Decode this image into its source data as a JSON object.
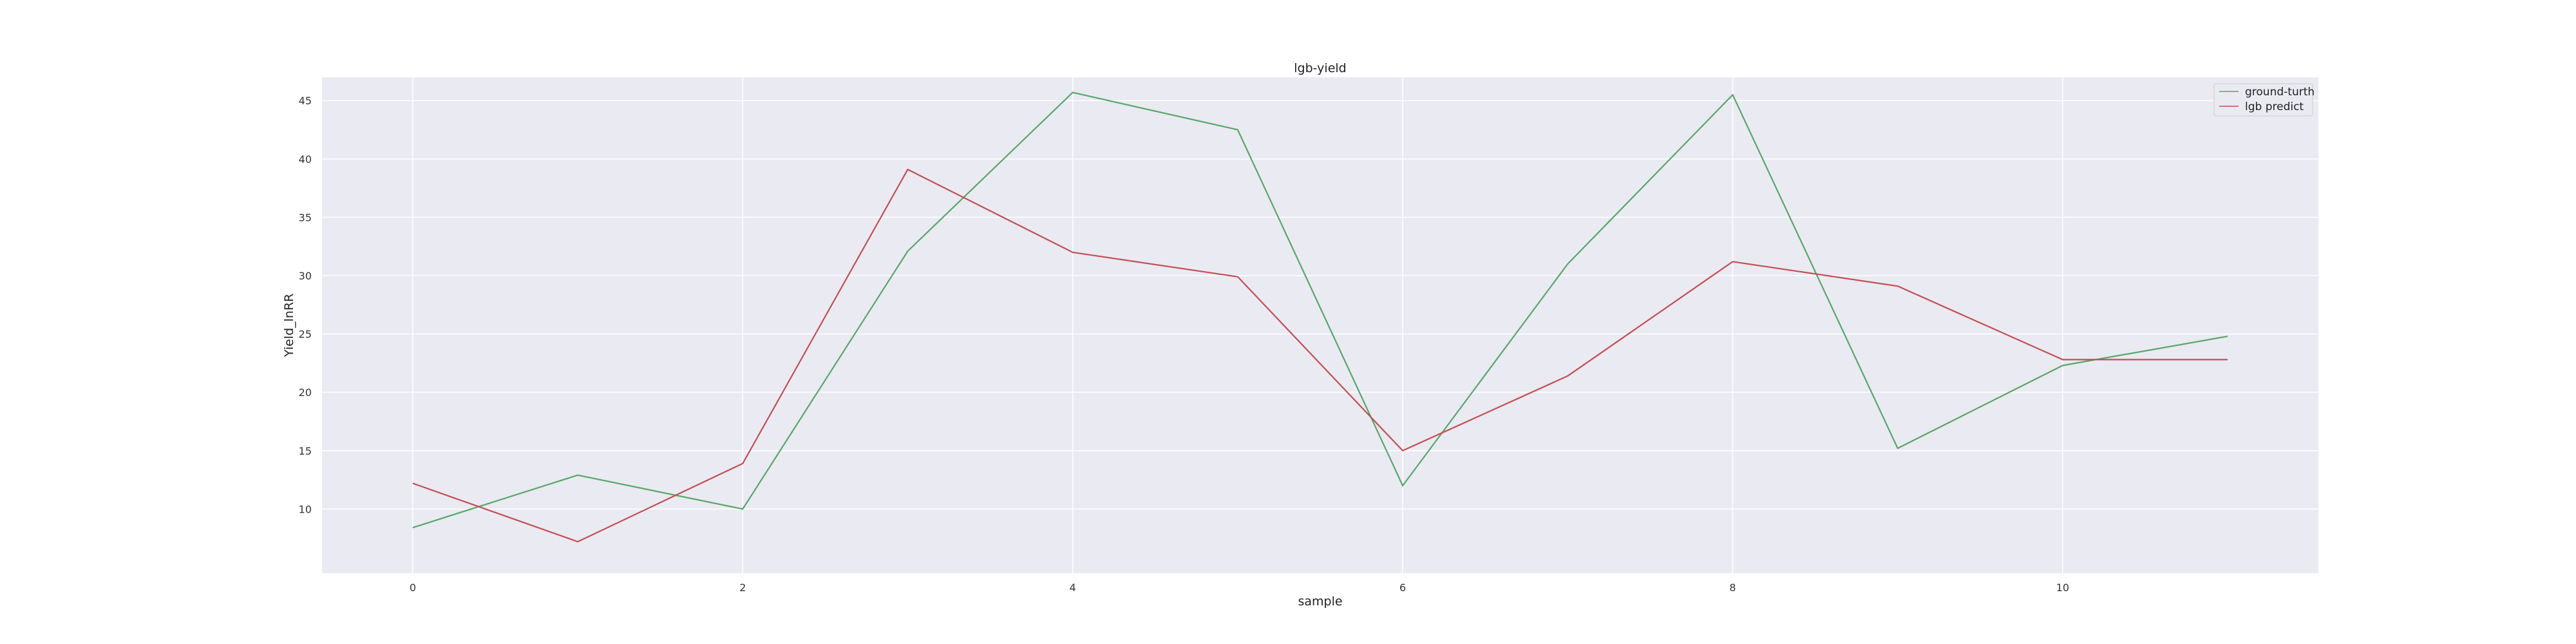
{
  "chart_data": {
    "type": "line",
    "title": "lgb-yield",
    "xlabel": "sample",
    "ylabel": "Yield_lnRR",
    "xlim": [
      -0.55,
      11.55
    ],
    "ylim": [
      4.5,
      47.0
    ],
    "xticks": [
      0,
      2,
      4,
      6,
      8,
      10
    ],
    "yticks": [
      10,
      15,
      20,
      25,
      30,
      35,
      40,
      45
    ],
    "grid": true,
    "legend_position": "top-right",
    "x": [
      0,
      1,
      2,
      3,
      4,
      5,
      6,
      7,
      8,
      9,
      10,
      11
    ],
    "series": [
      {
        "name": "ground-turth",
        "color": "#55a868",
        "values": [
          8.4,
          12.9,
          10.0,
          32.1,
          45.7,
          42.5,
          12.0,
          31.0,
          45.5,
          15.2,
          22.3,
          24.8
        ]
      },
      {
        "name": "lgb predict",
        "color": "#c44e52",
        "values": [
          12.2,
          7.2,
          13.9,
          39.1,
          32.0,
          29.9,
          15.0,
          21.4,
          31.2,
          29.1,
          22.8,
          22.8
        ]
      }
    ]
  },
  "colors": {
    "plot_background": "#eaeaf2",
    "grid": "#ffffff"
  }
}
